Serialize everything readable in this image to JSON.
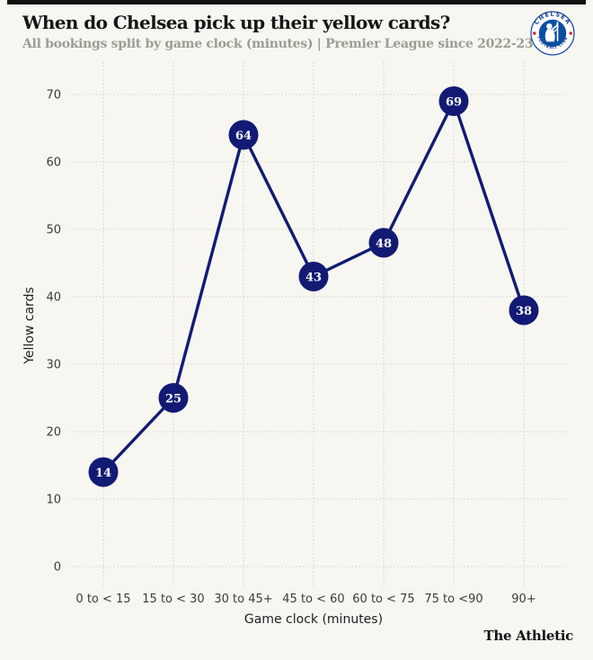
{
  "page": {
    "background_color": "#f7f6f0",
    "accent_bar_color": "#101010"
  },
  "header": {
    "title": "When do Chelsea pick up their yellow cards?",
    "subtitle": "All bookings split by game clock (minutes) | Premier League since 2022-23",
    "club_badge": "chelsea-fc-crest",
    "crest_text_top": "CHELSEA",
    "crest_text_bottom": "FOOTBALL CLUB"
  },
  "chart_data": {
    "type": "line",
    "categories": [
      "0 to < 15",
      "15 to < 30",
      "30 to 45+",
      "45 to < 60",
      "60 to < 75",
      "75 to <90",
      "90+"
    ],
    "values": [
      14,
      25,
      64,
      43,
      48,
      69,
      38
    ],
    "title": "When do Chelsea pick up their yellow cards?",
    "xlabel": "Game clock (minutes)",
    "ylabel": "Yellow cards",
    "yticks": [
      0,
      10,
      20,
      30,
      40,
      50,
      60,
      70
    ],
    "ylim": [
      0,
      74
    ],
    "grid": "dotted-both-axes",
    "legend_position": "none",
    "marker": "filled-circle-with-value-label",
    "line_color": "#131a74",
    "marker_color": "#131a74",
    "value_label_color": "#ffffff",
    "grid_color": "#d7d6cf",
    "tick_label_color": "#3c3c3c",
    "axis_label_color": "#1f1f1f"
  },
  "crest_colors": {
    "ring_fill": "#ffffff",
    "ring_stroke": "#1746a0",
    "inner_fill": "#0a4ea3",
    "lion": "#ffffff",
    "dots": "#d6232f",
    "arc_text": "#123b8e"
  },
  "footer": {
    "brand": "The Athletic"
  }
}
